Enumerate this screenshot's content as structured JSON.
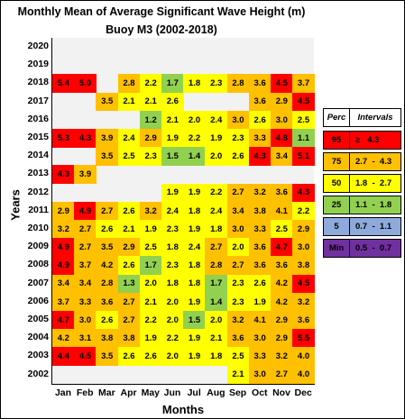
{
  "chart_data": {
    "type": "heatmap",
    "title": "Monthly Mean of Average Significant Wave Height (m)",
    "subtitle": "Buoy M3 (2002-2018)",
    "xlabel": "Months",
    "ylabel": "Years",
    "months": [
      "Jan",
      "Feb",
      "Mar",
      "Apr",
      "May",
      "Jun",
      "Jul",
      "Aug",
      "Sep",
      "Oct",
      "Nov",
      "Dec"
    ],
    "years": [
      "2020",
      "2019",
      "2018",
      "2017",
      "2016",
      "2015",
      "2014",
      "2013",
      "2012",
      "2011",
      "2010",
      "2009",
      "2008",
      "2007",
      "2006",
      "2005",
      "2004",
      "2003",
      "2002"
    ],
    "values": [
      [
        null,
        null,
        null,
        null,
        null,
        null,
        null,
        null,
        null,
        null,
        null,
        null
      ],
      [
        null,
        null,
        null,
        null,
        null,
        null,
        null,
        null,
        null,
        null,
        null,
        null
      ],
      [
        5.4,
        5.0,
        null,
        2.8,
        2.2,
        1.7,
        1.8,
        2.3,
        2.8,
        3.6,
        4.5,
        3.7
      ],
      [
        null,
        null,
        3.5,
        2.1,
        2.1,
        2.6,
        null,
        null,
        null,
        3.6,
        2.9,
        4.5
      ],
      [
        null,
        null,
        null,
        null,
        1.2,
        2.1,
        2.0,
        2.4,
        3.0,
        2.6,
        3.0,
        2.5
      ],
      [
        5.3,
        4.3,
        3.9,
        2.4,
        2.9,
        1.9,
        2.2,
        1.9,
        2.3,
        3.3,
        4.8,
        1.1
      ],
      [
        null,
        null,
        3.5,
        2.5,
        2.3,
        1.5,
        1.4,
        2.0,
        2.6,
        4.3,
        3.4,
        5.1
      ],
      [
        4.3,
        3.9,
        null,
        null,
        null,
        null,
        null,
        null,
        null,
        null,
        null,
        null
      ],
      [
        null,
        null,
        null,
        null,
        null,
        1.9,
        1.9,
        2.2,
        2.7,
        3.2,
        3.6,
        4.3
      ],
      [
        2.9,
        4.9,
        2.7,
        2.6,
        3.2,
        2.4,
        1.8,
        2.4,
        3.4,
        3.8,
        4.1,
        2.2
      ],
      [
        3.2,
        2.7,
        2.6,
        2.1,
        1.9,
        2.3,
        1.9,
        1.8,
        3.0,
        3.3,
        2.5,
        2.9
      ],
      [
        4.9,
        2.7,
        3.5,
        2.9,
        2.5,
        1.8,
        2.4,
        2.7,
        2.0,
        3.6,
        4.7,
        3.0
      ],
      [
        4.9,
        3.7,
        4.2,
        2.6,
        1.7,
        2.3,
        1.8,
        2.8,
        2.7,
        3.6,
        3.6,
        3.8
      ],
      [
        3.4,
        3.4,
        2.8,
        1.3,
        2.0,
        1.8,
        1.8,
        1.7,
        2.3,
        2.6,
        4.2,
        4.5
      ],
      [
        3.7,
        3.3,
        3.6,
        2.7,
        2.1,
        2.0,
        1.9,
        1.4,
        2.3,
        1.9,
        4.2,
        3.2
      ],
      [
        4.7,
        3.0,
        2.6,
        2.7,
        2.2,
        2.0,
        1.5,
        2.0,
        3.2,
        4.1,
        2.9,
        3.6
      ],
      [
        4.2,
        3.1,
        3.8,
        3.8,
        1.9,
        2.2,
        1.9,
        2.1,
        3.6,
        3.0,
        2.9,
        5.5
      ],
      [
        4.4,
        4.5,
        3.5,
        2.6,
        2.6,
        2.0,
        1.9,
        1.8,
        2.5,
        3.3,
        3.2,
        4.0
      ],
      [
        null,
        null,
        null,
        null,
        null,
        null,
        null,
        null,
        2.1,
        3.0,
        2.7,
        4.0
      ]
    ],
    "legend": {
      "headers": [
        "Perc",
        "Intervals"
      ],
      "rows": [
        {
          "perc": "95",
          "interval": "≥   4.3",
          "color": "#ff0000"
        },
        {
          "perc": "75",
          "interval": "2.7  -  4.3",
          "color": "#ffc000"
        },
        {
          "perc": "50",
          "interval": "1.8  -  2.7",
          "color": "#ffff00"
        },
        {
          "perc": "25",
          "interval": "1.1  -  1.8",
          "color": "#92d050"
        },
        {
          "perc": "5",
          "interval": "0.7  -  1.1",
          "color": "#8eaadb"
        },
        {
          "perc": "Min",
          "interval": "0.5  -  0.7",
          "color": "#7030a0"
        }
      ]
    },
    "empty_cell_color": "#f2f2f2"
  }
}
